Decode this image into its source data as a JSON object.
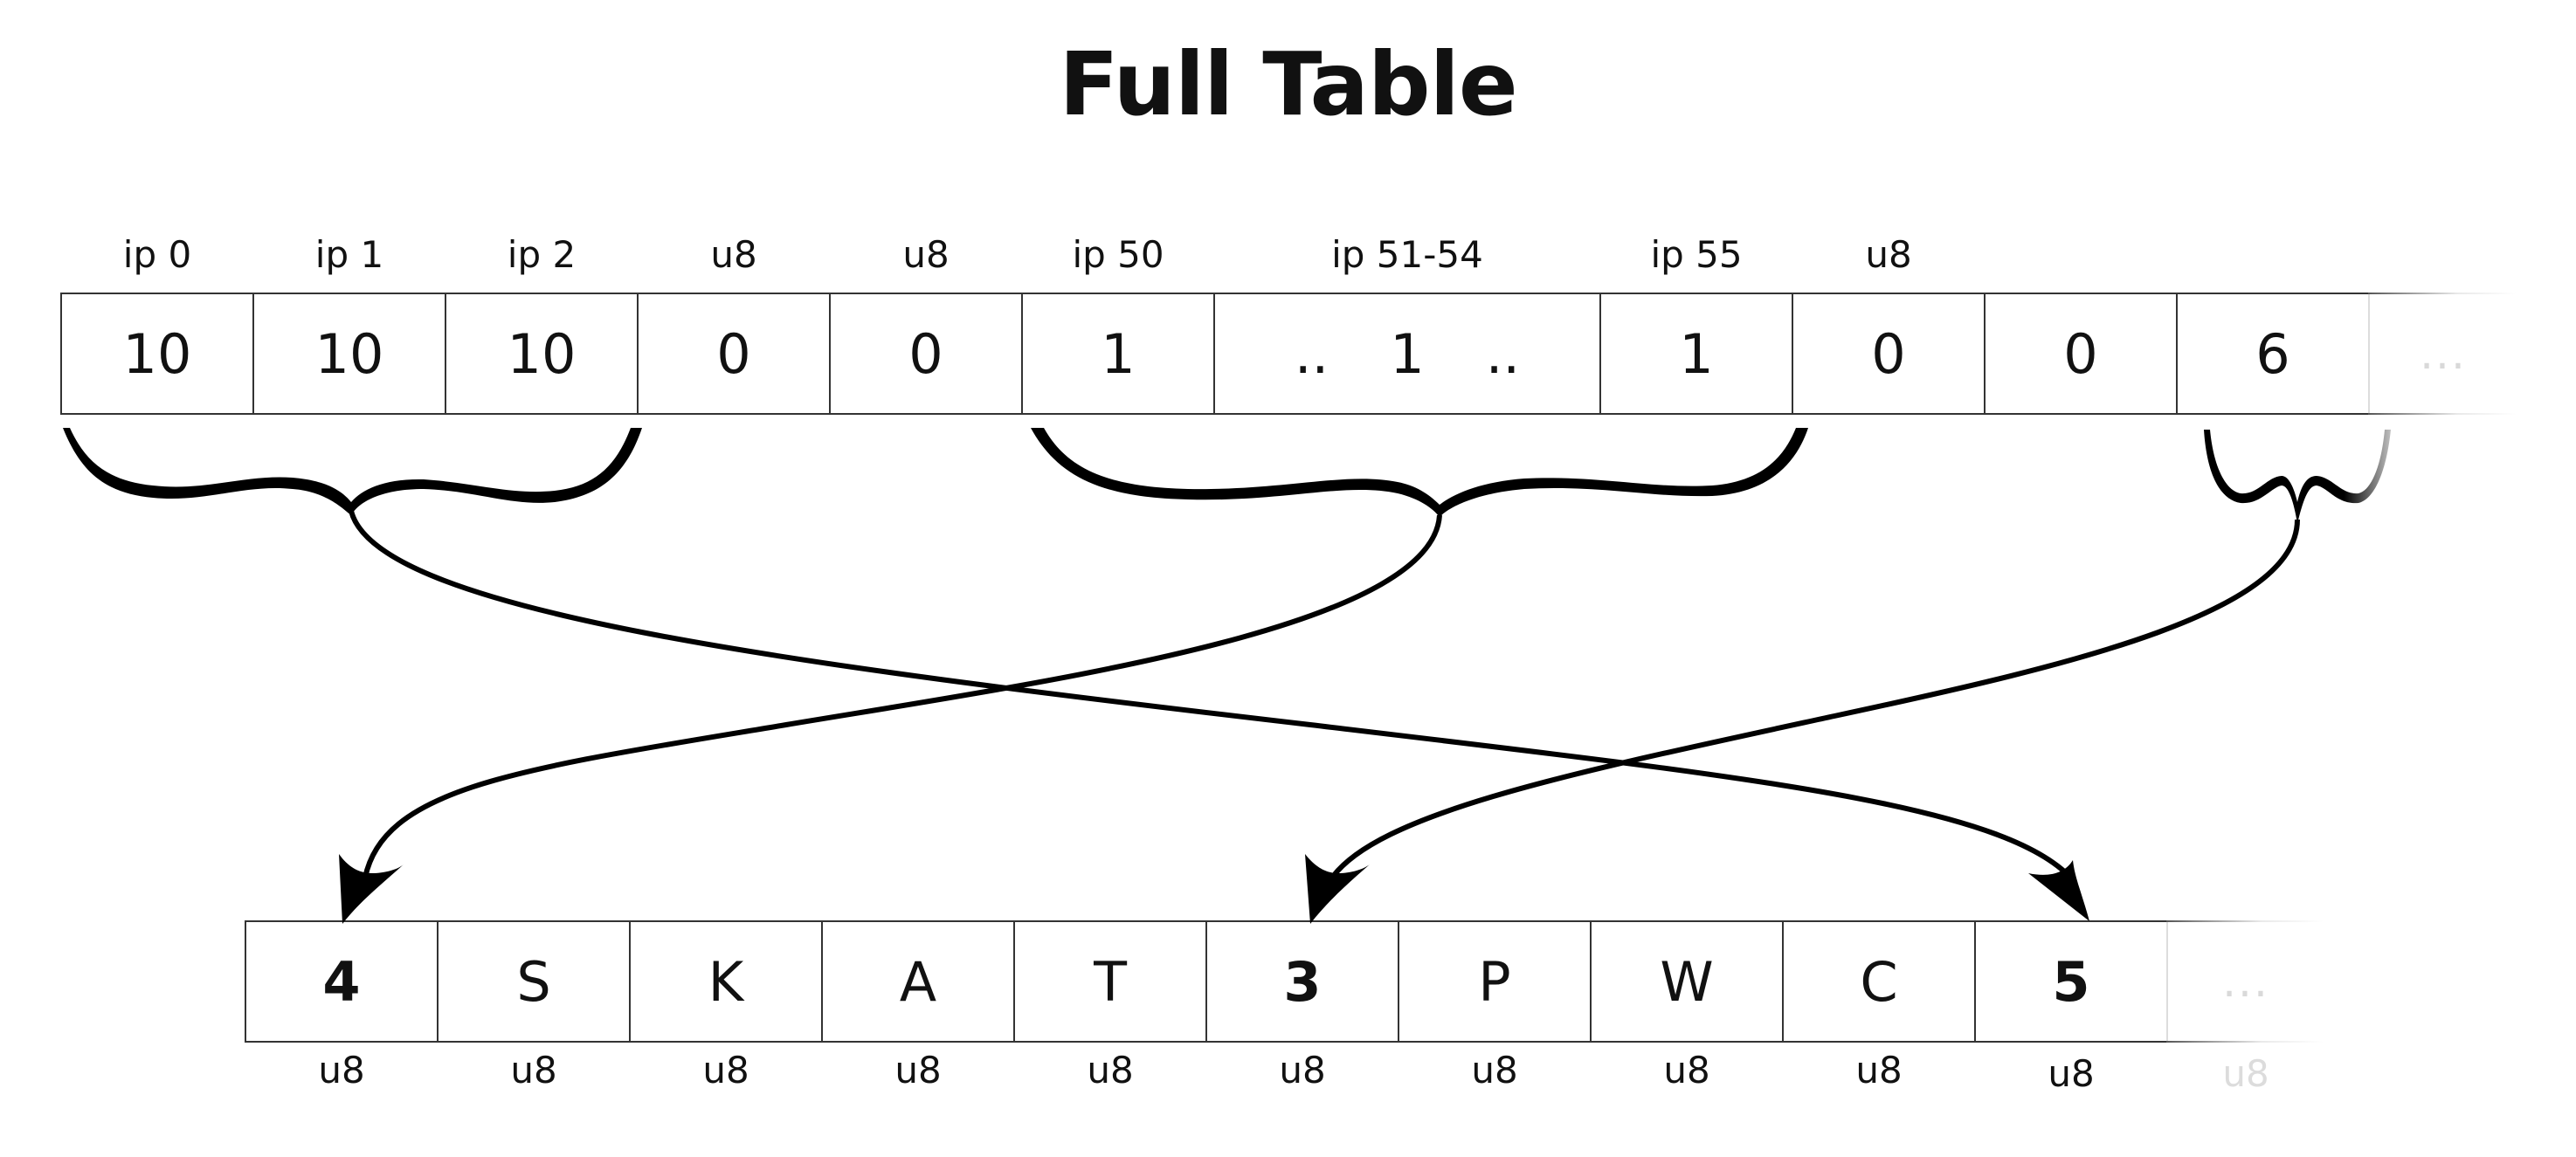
{
  "title": "Full Table",
  "top_row": {
    "cells": [
      {
        "header": "ip 0",
        "value": "10"
      },
      {
        "header": "ip 1",
        "value": "10"
      },
      {
        "header": "ip 2",
        "value": "10"
      },
      {
        "header": "u8",
        "value": "0"
      },
      {
        "header": "u8",
        "value": "0"
      },
      {
        "header": "ip 50",
        "value": "1"
      },
      {
        "header": "ip 51-54",
        "value": "1",
        "dots_left": "..",
        "dots_right": ".."
      },
      {
        "header": "ip 55",
        "value": "1"
      },
      {
        "header": "u8",
        "value": "0"
      },
      {
        "header": "",
        "value": "0"
      },
      {
        "header": "",
        "value": "6"
      },
      {
        "header": "",
        "value": "..."
      }
    ]
  },
  "bottom_row": {
    "cells": [
      {
        "value": "4",
        "bold": true,
        "footer": "u8"
      },
      {
        "value": "S",
        "footer": "u8"
      },
      {
        "value": "K",
        "footer": "u8"
      },
      {
        "value": "A",
        "footer": "u8"
      },
      {
        "value": "T",
        "footer": "u8"
      },
      {
        "value": "3",
        "bold": true,
        "footer": "u8"
      },
      {
        "value": "P",
        "footer": "u8"
      },
      {
        "value": "W",
        "footer": "u8"
      },
      {
        "value": "C",
        "footer": "u8"
      },
      {
        "value": "5",
        "bold": true,
        "footer": "u8"
      },
      {
        "value": "...",
        "footer": "u8"
      }
    ]
  },
  "stroke_color": "#000000",
  "fade_color": "#d9d9d9"
}
